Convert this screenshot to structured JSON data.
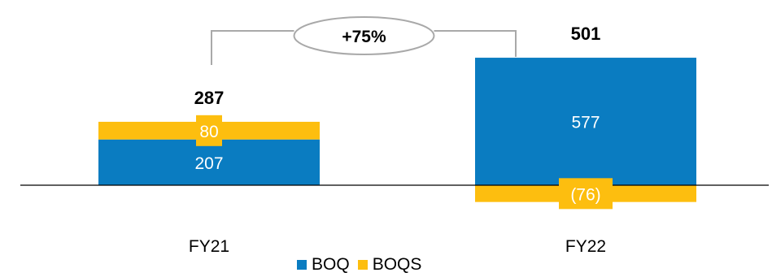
{
  "chart_data": {
    "type": "bar",
    "stacked": true,
    "categories": [
      "FY21",
      "FY22"
    ],
    "series": [
      {
        "name": "BOQ",
        "color": "#0A7CC1",
        "values": [
          207,
          577
        ],
        "labels": [
          "207",
          "577"
        ]
      },
      {
        "name": "BOQS",
        "color": "#FDBE0F",
        "values": [
          80,
          -76
        ],
        "labels": [
          "80",
          "(76)"
        ]
      }
    ],
    "totals": [
      287,
      501
    ],
    "total_labels": [
      "287",
      "501"
    ],
    "growth_label": "+75%",
    "title": "",
    "xlabel": "",
    "ylabel": "",
    "legend_position": "bottom-center",
    "grid": false
  }
}
